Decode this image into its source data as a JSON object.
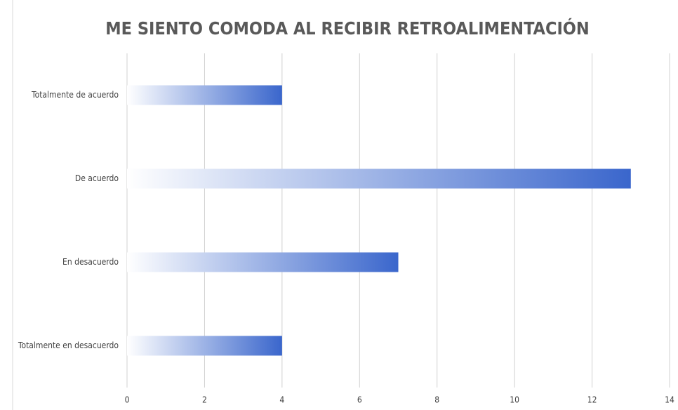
{
  "chart_data": {
    "type": "bar",
    "orientation": "horizontal",
    "title": "ME SIENTO COMODA AL RECIBIR RETROALIMENTACIÓN",
    "categories": [
      "Totalmente de acuerdo",
      "De acuerdo",
      "En desacuerdo",
      "Totalmente en desacuerdo"
    ],
    "values": [
      4,
      13,
      7,
      4
    ],
    "color": "#3a66cc",
    "xlim": [
      0,
      14
    ],
    "xticks": [
      0,
      2,
      4,
      6,
      8,
      10,
      12,
      14
    ],
    "grid": true
  }
}
